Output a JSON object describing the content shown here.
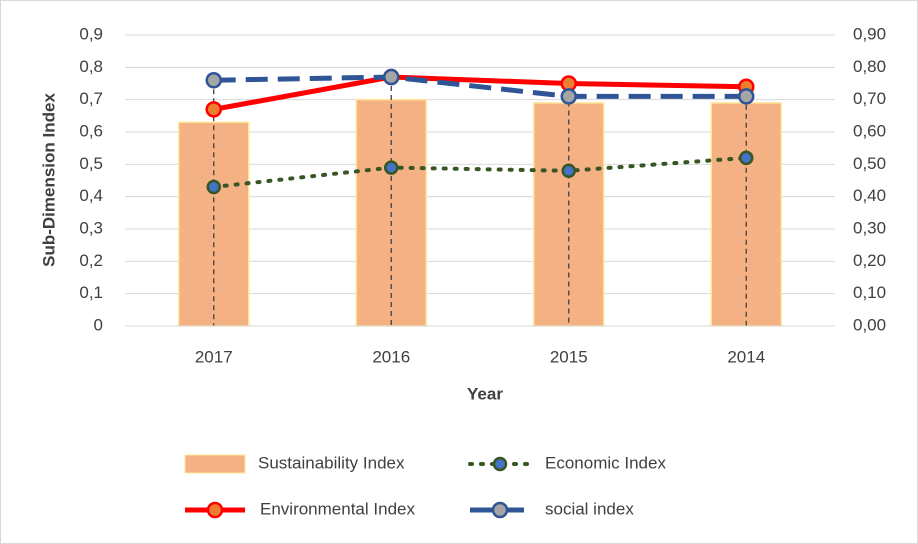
{
  "chart_data": {
    "type": "bar_line",
    "x_label": "Year",
    "y_label": "Sub-Dimension Index",
    "categories": [
      "2017",
      "2016",
      "2015",
      "2014"
    ],
    "series": [
      {
        "name": "Sustainability Index",
        "type": "bar",
        "color": "#f4b183",
        "edge": "#ffe699",
        "values": [
          0.63,
          0.7,
          0.69,
          0.69
        ]
      },
      {
        "name": "Economic Index",
        "type": "line",
        "style": "dotted",
        "color": "#375623",
        "marker": "#4472c4",
        "values": [
          0.43,
          0.49,
          0.48,
          0.52
        ]
      },
      {
        "name": "Environmental Index",
        "type": "line",
        "style": "solid",
        "color": "#ff0000",
        "marker": "#ed7d31",
        "values": [
          0.67,
          0.77,
          0.75,
          0.74
        ]
      },
      {
        "name": "social index",
        "type": "line",
        "style": "dashed",
        "color": "#2f5597",
        "marker": "#a5a5a5",
        "values": [
          0.76,
          0.77,
          0.71,
          0.71
        ]
      }
    ],
    "ylim": [
      0,
      0.9
    ],
    "yticks": [
      0,
      {
        "value": 0.1,
        "label": "0,1"
      },
      {
        "value": 0.2,
        "label": "0,2"
      },
      {
        "value": 0.3,
        "label": "0,3"
      },
      {
        "value": 0.4,
        "label": "0,4"
      },
      {
        "value": 0.5,
        "label": "0,5"
      },
      {
        "value": 0.6,
        "label": "0,6"
      },
      {
        "value": 0.7,
        "label": "0,7"
      },
      {
        "value": 0.8,
        "label": "0,8"
      },
      {
        "value": 0.9,
        "label": "0,9"
      }
    ],
    "y2lim": [
      0,
      0.9
    ],
    "y2ticks": [
      {
        "value": 0,
        "label": "0,00"
      },
      {
        "value": 0.1,
        "label": "0,10"
      },
      {
        "value": 0.2,
        "label": "0,20"
      },
      {
        "value": 0.3,
        "label": "0,30"
      },
      {
        "value": 0.4,
        "label": "0,40"
      },
      {
        "value": 0.5,
        "label": "0,50"
      },
      {
        "value": 0.6,
        "label": "0,60"
      },
      {
        "value": 0.7,
        "label": "0,70"
      },
      {
        "value": 0.8,
        "label": "0,80"
      },
      {
        "value": 0.9,
        "label": "0,90"
      }
    ],
    "grid": true,
    "legend": "bottom"
  }
}
